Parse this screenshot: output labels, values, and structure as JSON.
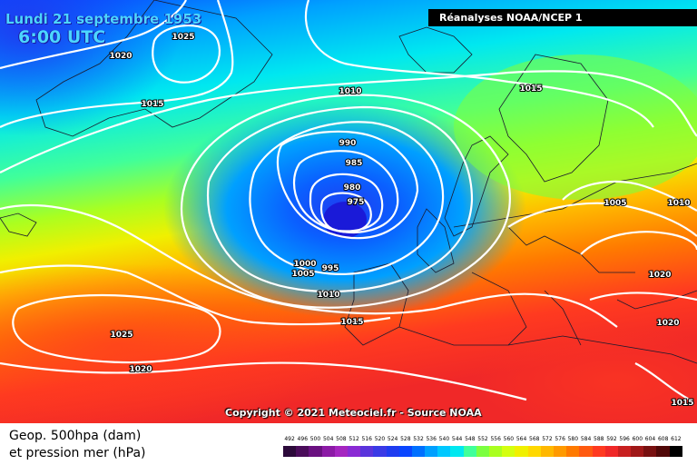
{
  "header": {
    "date": "Lundi 21 septembre 1953",
    "time": "6:00 UTC",
    "source": "Réanalyses NOAA/NCEP 1"
  },
  "copyright": "Copyright © 2021 Meteociel.fr - Source NOAA",
  "legend": {
    "line1": "Geop. 500hpa (dam)",
    "line2": "et pression mer (hPa)",
    "ticks": [
      "492",
      "496",
      "500",
      "504",
      "508",
      "512",
      "516",
      "520",
      "524",
      "528",
      "532",
      "536",
      "540",
      "544",
      "548",
      "552",
      "556",
      "560",
      "564",
      "568",
      "572",
      "576",
      "580",
      "584",
      "588",
      "592",
      "596",
      "600",
      "604",
      "608",
      "612"
    ],
    "colors": [
      "#2c0a3a",
      "#4a0c5a",
      "#6a1080",
      "#8c1aa6",
      "#a526c0",
      "#8a2ad4",
      "#5a34dc",
      "#3a3ae6",
      "#1f3cf0",
      "#0a46ff",
      "#0070ff",
      "#00a0ff",
      "#00c8ff",
      "#00e8f0",
      "#40ff9a",
      "#7cff40",
      "#aaff20",
      "#d4ff10",
      "#f0f000",
      "#ffd800",
      "#ffb800",
      "#ff9a00",
      "#ff7a00",
      "#ff5a10",
      "#ff3a20",
      "#f02828",
      "#c82020",
      "#a01818",
      "#781010",
      "#500808",
      "#000000"
    ]
  },
  "isobars": [
    {
      "label": "1025"
    },
    {
      "label": "1020"
    },
    {
      "label": "1015"
    },
    {
      "label": "1010"
    },
    {
      "label": "1015"
    },
    {
      "label": "990"
    },
    {
      "label": "985"
    },
    {
      "label": "980"
    },
    {
      "label": "975"
    },
    {
      "label": "1005"
    },
    {
      "label": "1010"
    },
    {
      "label": "1000"
    },
    {
      "label": "1005"
    },
    {
      "label": "995"
    },
    {
      "label": "1010"
    },
    {
      "label": "1015"
    },
    {
      "label": "1025"
    },
    {
      "label": "1020"
    },
    {
      "label": "1020"
    },
    {
      "label": "1020"
    },
    {
      "label": "1015"
    }
  ]
}
